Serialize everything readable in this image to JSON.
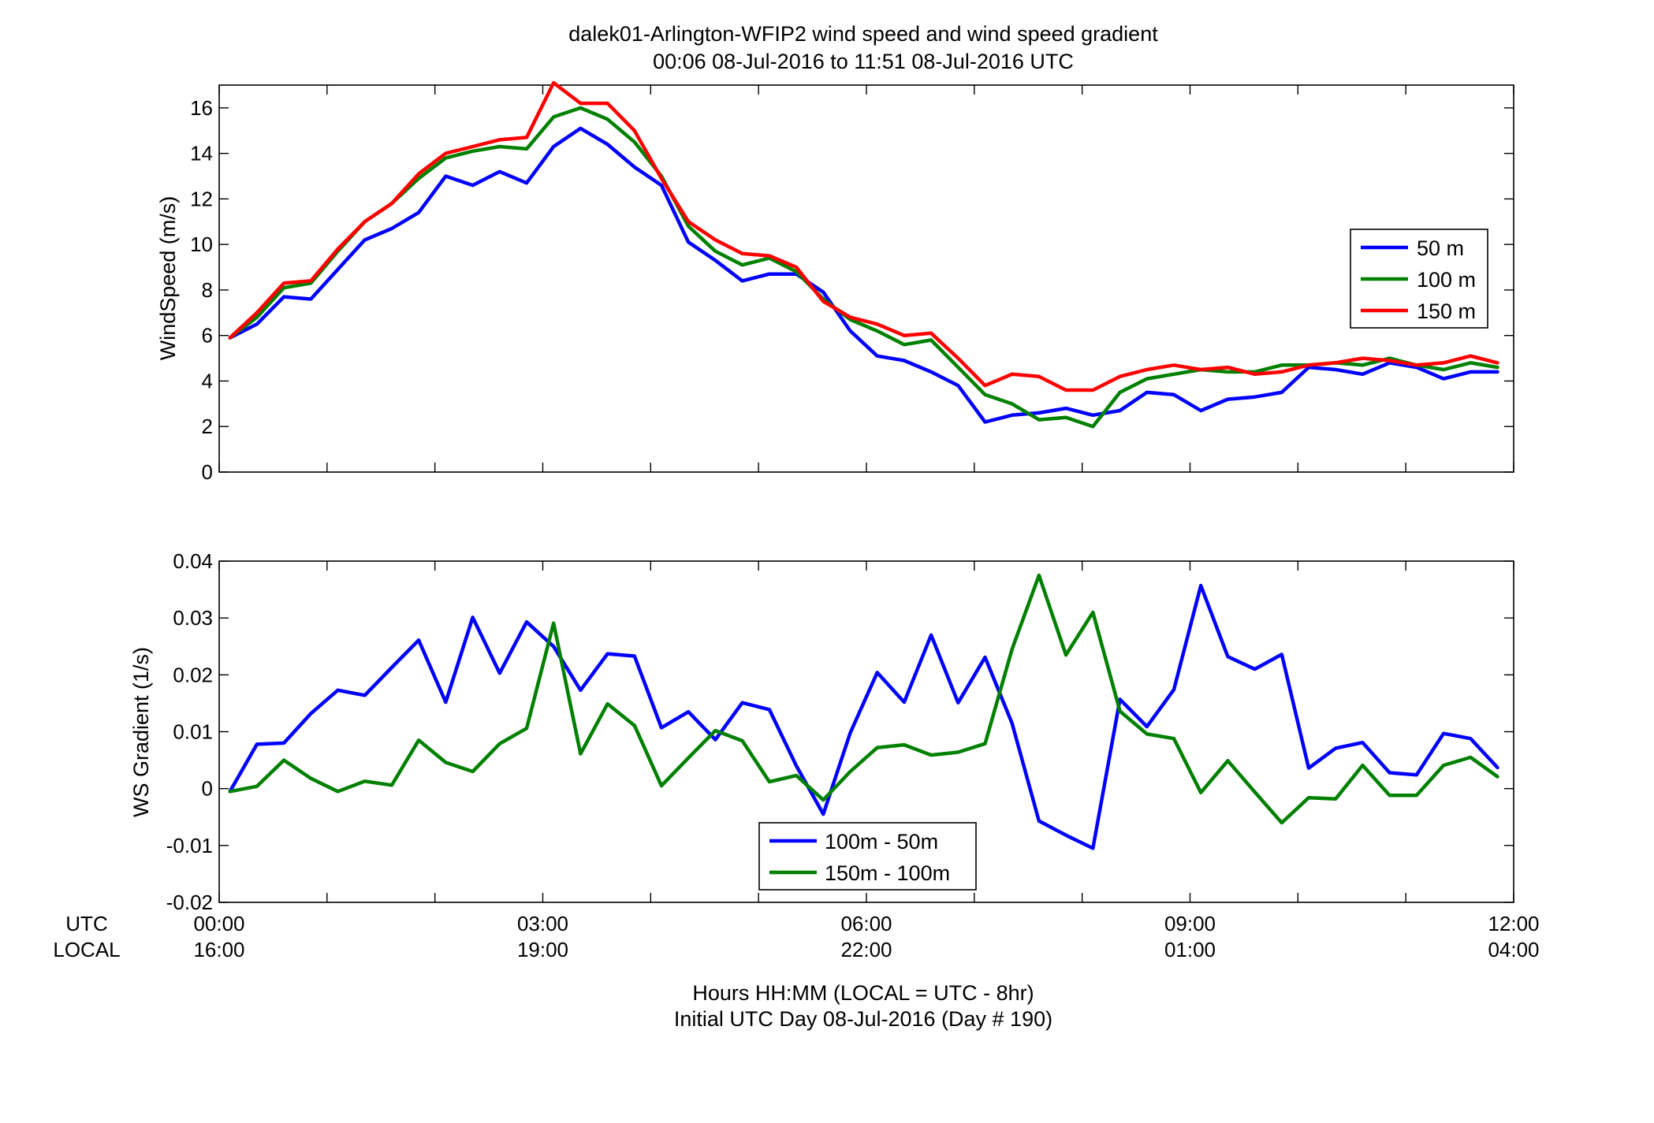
{
  "title": {
    "line1": "dalek01-Arlington-WFIP2  wind speed and wind speed gradient",
    "line2": "00:06 08-Jul-2016 to 11:51 08-Jul-2016  UTC"
  },
  "xaxis": {
    "row_label_utc": "UTC",
    "row_label_local": "LOCAL",
    "utc_ticks": [
      "00:00",
      "03:00",
      "06:00",
      "09:00",
      "12:00"
    ],
    "local_ticks": [
      "16:00",
      "19:00",
      "22:00",
      "01:00",
      "04:00"
    ],
    "tick_hours": [
      0,
      3,
      6,
      9,
      12
    ],
    "xlabel_line1": "Hours HH:MM  (LOCAL = UTC - 8hr)",
    "xlabel_line2": "Initial UTC Day 08-Jul-2016 (Day # 190)"
  },
  "chart_data": [
    {
      "type": "line",
      "ylabel": "WindSpeed (m/s)",
      "xlim": [
        0,
        12
      ],
      "ylim": [
        0,
        17
      ],
      "yticks": [
        0,
        2,
        4,
        6,
        8,
        10,
        12,
        14,
        16
      ],
      "grid": false,
      "legend": "right",
      "x": [
        0.1,
        0.35,
        0.6,
        0.85,
        1.1,
        1.35,
        1.6,
        1.85,
        2.1,
        2.35,
        2.6,
        2.85,
        3.1,
        3.35,
        3.6,
        3.85,
        4.1,
        4.35,
        4.6,
        4.85,
        5.1,
        5.35,
        5.6,
        5.85,
        6.1,
        6.35,
        6.6,
        6.85,
        7.1,
        7.35,
        7.6,
        7.85,
        8.1,
        8.35,
        8.6,
        8.85,
        9.1,
        9.35,
        9.6,
        9.85,
        10.1,
        10.35,
        10.6,
        10.85,
        11.1,
        11.35,
        11.6,
        11.85
      ],
      "series": [
        {
          "name": "50 m",
          "color": "#0000ff",
          "values": [
            5.9,
            6.5,
            7.7,
            7.6,
            8.9,
            10.2,
            10.7,
            11.4,
            13.0,
            12.6,
            13.2,
            12.7,
            14.3,
            15.1,
            14.4,
            13.4,
            12.6,
            10.1,
            9.3,
            8.4,
            8.7,
            8.7,
            7.9,
            6.2,
            5.1,
            4.9,
            4.4,
            3.8,
            2.2,
            2.5,
            2.6,
            2.8,
            2.5,
            2.7,
            3.5,
            3.4,
            2.7,
            3.2,
            3.3,
            3.5,
            4.6,
            4.5,
            4.3,
            4.8,
            4.6,
            4.1,
            4.4,
            4.4
          ]
        },
        {
          "name": "100 m",
          "color": "#008000",
          "values": [
            5.9,
            6.8,
            8.1,
            8.3,
            9.7,
            11.0,
            11.8,
            12.9,
            13.8,
            14.1,
            14.3,
            14.2,
            15.6,
            16.0,
            15.5,
            14.5,
            13.0,
            10.8,
            9.7,
            9.1,
            9.4,
            8.8,
            7.6,
            6.7,
            6.2,
            5.6,
            5.8,
            4.6,
            3.4,
            3.0,
            2.3,
            2.4,
            2.0,
            3.5,
            4.1,
            4.3,
            4.5,
            4.4,
            4.4,
            4.7,
            4.7,
            4.8,
            4.7,
            5.0,
            4.7,
            4.5,
            4.8,
            4.6
          ]
        },
        {
          "name": "150 m",
          "color": "#ff0000",
          "values": [
            5.9,
            7.0,
            8.3,
            8.4,
            9.8,
            11.0,
            11.8,
            13.1,
            14.0,
            14.3,
            14.6,
            14.7,
            17.1,
            16.2,
            16.2,
            15.0,
            12.9,
            11.0,
            10.2,
            9.6,
            9.5,
            9.0,
            7.5,
            6.8,
            6.5,
            6.0,
            6.1,
            5.0,
            3.8,
            4.3,
            4.2,
            3.6,
            3.6,
            4.2,
            4.5,
            4.7,
            4.5,
            4.6,
            4.3,
            4.4,
            4.7,
            4.8,
            5.0,
            4.9,
            4.7,
            4.8,
            5.1,
            4.8
          ]
        }
      ]
    },
    {
      "type": "line",
      "ylabel": "WS Gradient (1/s)",
      "xlim": [
        0,
        12
      ],
      "ylim": [
        -0.02,
        0.04
      ],
      "yticks": [
        -0.02,
        -0.01,
        0,
        0.01,
        0.02,
        0.03,
        0.04
      ],
      "ytick_labels": [
        "-0.02",
        "-0.01",
        "0",
        "0.01",
        "0.02",
        "0.03",
        "0.04"
      ],
      "grid": false,
      "legend": "bottom-center",
      "x": [
        0.1,
        0.35,
        0.6,
        0.85,
        1.1,
        1.35,
        1.6,
        1.85,
        2.1,
        2.35,
        2.6,
        2.85,
        3.1,
        3.35,
        3.6,
        3.85,
        4.1,
        4.35,
        4.6,
        4.85,
        5.1,
        5.35,
        5.6,
        5.85,
        6.1,
        6.35,
        6.6,
        6.85,
        7.1,
        7.35,
        7.6,
        7.85,
        8.1,
        8.35,
        8.6,
        8.85,
        9.1,
        9.35,
        9.6,
        9.85,
        10.1,
        10.35,
        10.6,
        10.85,
        11.1,
        11.35,
        11.6,
        11.85
      ],
      "series": [
        {
          "name": "100m - 50m",
          "color": "#0000ff",
          "values": [
            -0.0005,
            0.0078,
            0.008,
            0.0132,
            0.0173,
            0.0164,
            0.0213,
            0.0261,
            0.0152,
            0.0301,
            0.0203,
            0.0293,
            0.025,
            0.0173,
            0.0237,
            0.0233,
            0.0107,
            0.0135,
            0.0086,
            0.0151,
            0.0139,
            0.004,
            -0.0045,
            0.0098,
            0.0204,
            0.0152,
            0.027,
            0.0151,
            0.0231,
            0.0115,
            -0.0057,
            -0.0082,
            -0.0105,
            0.0157,
            0.0109,
            0.0174,
            0.0357,
            0.0232,
            0.021,
            0.0236,
            0.0036,
            0.0071,
            0.0081,
            0.0028,
            0.0024,
            0.0097,
            0.0088,
            0.0037
          ]
        },
        {
          "name": "150m - 100m",
          "color": "#008000",
          "values": [
            -0.0005,
            0.0004,
            0.005,
            0.0018,
            -0.0005,
            0.0013,
            0.0006,
            0.0085,
            0.0046,
            0.003,
            0.0079,
            0.0106,
            0.0291,
            0.0061,
            0.0149,
            0.0111,
            0.0005,
            0.0054,
            0.0102,
            0.0084,
            0.0012,
            0.0023,
            -0.002,
            0.003,
            0.0072,
            0.0077,
            0.0059,
            0.0064,
            0.0079,
            0.0245,
            0.0375,
            0.0235,
            0.031,
            0.0136,
            0.0096,
            0.0088,
            -0.0007,
            0.0049,
            -0.0006,
            -0.006,
            -0.0016,
            -0.0018,
            0.0041,
            -0.0012,
            -0.0012,
            0.0041,
            0.0055,
            0.0021
          ]
        }
      ]
    }
  ]
}
